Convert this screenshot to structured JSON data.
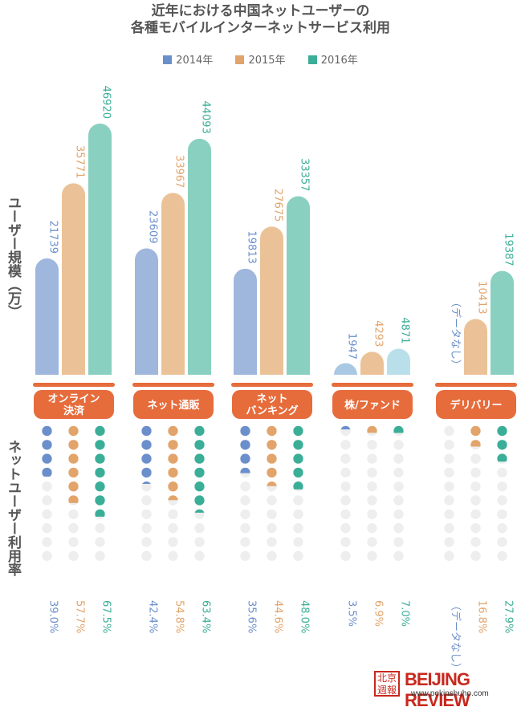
{
  "title_line1": "近年における中国ネットユーザーの",
  "title_line2": "各種モバイルインターネットサービス利用",
  "y_title_top": "ユーザー規模（万）",
  "y_title_bottom": "ネットユーザー利用率",
  "footer": {
    "logo_cn": "北京周报",
    "logo_en": "BEIJING REVIEW",
    "url": "www.pekinshuho.com"
  },
  "colors": {
    "y2014": "#6b8fcb",
    "y2015": "#e2a46a",
    "y2016": "#3bae98",
    "y2014_bar": "#9fb6dd",
    "y2015_bar": "#ebc297",
    "y2016_bar": "#89d0c0",
    "y2014_bar_light": "#a9c8e3",
    "y2016_bar_light": "#b9e0ea",
    "category_box": "#e66c3c",
    "empty_dot": "#eeeeee"
  },
  "chart_data": {
    "type": "bar",
    "categories": [
      "オンライン決済",
      "ネット通販",
      "ネットバンキング",
      "株/ファンド",
      "デリバリー"
    ],
    "category_labels": [
      [
        "オンライン",
        "決済"
      ],
      [
        "ネット通販"
      ],
      [
        "ネット",
        "バンキング"
      ],
      [
        "株/ファンド"
      ],
      [
        "デリバリー"
      ]
    ],
    "ylabel": "ユーザー規模（万）",
    "series": [
      {
        "name": "2014年",
        "values": [
          21739,
          23609,
          19813,
          1947,
          null
        ],
        "rates": [
          39.0,
          42.4,
          35.6,
          3.5,
          null
        ]
      },
      {
        "name": "2015年",
        "values": [
          35771,
          33967,
          27675,
          4293,
          10413
        ],
        "rates": [
          57.7,
          54.8,
          44.6,
          6.9,
          16.8
        ]
      },
      {
        "name": "2016年",
        "values": [
          46920,
          44093,
          33357,
          4871,
          19387
        ],
        "rates": [
          67.5,
          63.4,
          48.0,
          7.0,
          27.9
        ]
      }
    ],
    "value_labels": [
      [
        "21739",
        "23609",
        "19813",
        "1947",
        "（データなし）"
      ],
      [
        "35771",
        "33967",
        "27675",
        "4293",
        "10413"
      ],
      [
        "46920",
        "44093",
        "33357",
        "4871",
        "19387"
      ]
    ],
    "rate_labels": [
      [
        "39.0%",
        "42.4%",
        "35.6%",
        "3.5%",
        "（データなし）"
      ],
      [
        "57.7%",
        "54.8%",
        "44.6%",
        "6.9%",
        "16.8%"
      ],
      [
        "67.5%",
        "63.4%",
        "48.0%",
        "7.0%",
        "27.9%"
      ]
    ],
    "dots_per_column": 10,
    "legend_placement": "top-center",
    "grid": false
  }
}
